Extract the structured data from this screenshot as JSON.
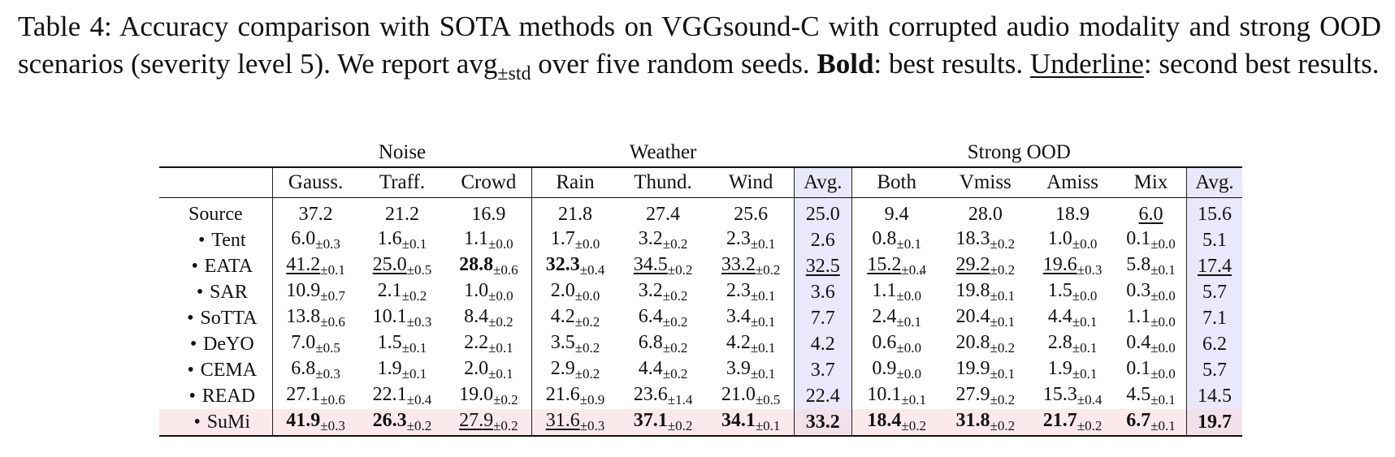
{
  "caption": {
    "label": "Table 4:",
    "text_1": "Accuracy comparison with SOTA methods on VGGsound-C with corrupted audio modality and strong OOD scenarios (severity level 5). We report avg",
    "sub": "±std",
    "text_2": "over five random seeds.",
    "bold_word": "Bold",
    "text_3": ": best results.",
    "underline_word": "Underline",
    "text_4": ": second best results."
  },
  "groups": [
    {
      "label": "",
      "span": 1
    },
    {
      "label": "Noise",
      "span": 3
    },
    {
      "label": "Weather",
      "span": 3
    },
    {
      "label": "",
      "span": 1
    },
    {
      "label": "Strong OOD",
      "span": 4
    },
    {
      "label": "",
      "span": 1
    }
  ],
  "columns": [
    "Gauss.",
    "Traff.",
    "Crowd",
    "Rain",
    "Thund.",
    "Wind",
    "Avg.",
    "Both",
    "Vmiss",
    "Amiss",
    "Mix",
    "Avg."
  ],
  "bullet": "•",
  "rows": [
    {
      "method": "Source",
      "bullet": false,
      "cells": [
        {
          "v": "37.2"
        },
        {
          "v": "21.2"
        },
        {
          "v": "16.9"
        },
        {
          "v": "21.8"
        },
        {
          "v": "27.4"
        },
        {
          "v": "25.6"
        },
        {
          "v": "25.0"
        },
        {
          "v": "9.4"
        },
        {
          "v": "28.0"
        },
        {
          "v": "18.9"
        },
        {
          "v": "6.0",
          "u": true
        },
        {
          "v": "15.6"
        }
      ]
    },
    {
      "method": "Tent",
      "bullet": true,
      "cells": [
        {
          "v": "6.0",
          "s": "±0.3"
        },
        {
          "v": "1.6",
          "s": "±0.1"
        },
        {
          "v": "1.1",
          "s": "±0.0"
        },
        {
          "v": "1.7",
          "s": "±0.0"
        },
        {
          "v": "3.2",
          "s": "±0.2"
        },
        {
          "v": "2.3",
          "s": "±0.1"
        },
        {
          "v": "2.6"
        },
        {
          "v": "0.8",
          "s": "±0.1"
        },
        {
          "v": "18.3",
          "s": "±0.2"
        },
        {
          "v": "1.0",
          "s": "±0.0"
        },
        {
          "v": "0.1",
          "s": "±0.0"
        },
        {
          "v": "5.1"
        }
      ]
    },
    {
      "method": "EATA",
      "bullet": true,
      "cells": [
        {
          "v": "41.2",
          "s": "±0.1",
          "u": true
        },
        {
          "v": "25.0",
          "s": "±0.5",
          "u": true
        },
        {
          "v": "28.8",
          "s": "±0.6",
          "b": true
        },
        {
          "v": "32.3",
          "s": "±0.4",
          "b": true
        },
        {
          "v": "34.5",
          "s": "±0.2",
          "u": true
        },
        {
          "v": "33.2",
          "s": "±0.2",
          "u": true
        },
        {
          "v": "32.5",
          "u": true
        },
        {
          "v": "15.2",
          "s": "±0.4",
          "u": true
        },
        {
          "v": "29.2",
          "s": "±0.2",
          "u": true
        },
        {
          "v": "19.6",
          "s": "±0.3",
          "u": true
        },
        {
          "v": "5.8",
          "s": "±0.1"
        },
        {
          "v": "17.4",
          "u": true
        }
      ]
    },
    {
      "method": "SAR",
      "bullet": true,
      "cells": [
        {
          "v": "10.9",
          "s": "±0.7"
        },
        {
          "v": "2.1",
          "s": "±0.2"
        },
        {
          "v": "1.0",
          "s": "±0.0"
        },
        {
          "v": "2.0",
          "s": "±0.0"
        },
        {
          "v": "3.2",
          "s": "±0.2"
        },
        {
          "v": "2.3",
          "s": "±0.1"
        },
        {
          "v": "3.6"
        },
        {
          "v": "1.1",
          "s": "±0.0"
        },
        {
          "v": "19.8",
          "s": "±0.1"
        },
        {
          "v": "1.5",
          "s": "±0.0"
        },
        {
          "v": "0.3",
          "s": "±0.0"
        },
        {
          "v": "5.7"
        }
      ]
    },
    {
      "method": "SoTTA",
      "bullet": true,
      "cells": [
        {
          "v": "13.8",
          "s": "±0.6"
        },
        {
          "v": "10.1",
          "s": "±0.3"
        },
        {
          "v": "8.4",
          "s": "±0.2"
        },
        {
          "v": "4.2",
          "s": "±0.2"
        },
        {
          "v": "6.4",
          "s": "±0.2"
        },
        {
          "v": "3.4",
          "s": "±0.1"
        },
        {
          "v": "7.7"
        },
        {
          "v": "2.4",
          "s": "±0.1"
        },
        {
          "v": "20.4",
          "s": "±0.1"
        },
        {
          "v": "4.4",
          "s": "±0.1"
        },
        {
          "v": "1.1",
          "s": "±0.0"
        },
        {
          "v": "7.1"
        }
      ]
    },
    {
      "method": "DeYO",
      "bullet": true,
      "cells": [
        {
          "v": "7.0",
          "s": "±0.5"
        },
        {
          "v": "1.5",
          "s": "±0.1"
        },
        {
          "v": "2.2",
          "s": "±0.1"
        },
        {
          "v": "3.5",
          "s": "±0.2"
        },
        {
          "v": "6.8",
          "s": "±0.2"
        },
        {
          "v": "4.2",
          "s": "±0.1"
        },
        {
          "v": "4.2"
        },
        {
          "v": "0.6",
          "s": "±0.0"
        },
        {
          "v": "20.8",
          "s": "±0.2"
        },
        {
          "v": "2.8",
          "s": "±0.1"
        },
        {
          "v": "0.4",
          "s": "±0.0"
        },
        {
          "v": "6.2"
        }
      ]
    },
    {
      "method": "CEMA",
      "bullet": true,
      "cells": [
        {
          "v": "6.8",
          "s": "±0.3"
        },
        {
          "v": "1.9",
          "s": "±0.1"
        },
        {
          "v": "2.0",
          "s": "±0.1"
        },
        {
          "v": "2.9",
          "s": "±0.2"
        },
        {
          "v": "4.4",
          "s": "±0.2"
        },
        {
          "v": "3.9",
          "s": "±0.1"
        },
        {
          "v": "3.7"
        },
        {
          "v": "0.9",
          "s": "±0.0"
        },
        {
          "v": "19.9",
          "s": "±0.1"
        },
        {
          "v": "1.9",
          "s": "±0.1"
        },
        {
          "v": "0.1",
          "s": "±0.0"
        },
        {
          "v": "5.7"
        }
      ]
    },
    {
      "method": "READ",
      "bullet": true,
      "cells": [
        {
          "v": "27.1",
          "s": "±0.6"
        },
        {
          "v": "22.1",
          "s": "±0.4"
        },
        {
          "v": "19.0",
          "s": "±0.2"
        },
        {
          "v": "21.6",
          "s": "±0.9"
        },
        {
          "v": "23.6",
          "s": "±1.4"
        },
        {
          "v": "21.0",
          "s": "±0.5"
        },
        {
          "v": "22.4"
        },
        {
          "v": "10.1",
          "s": "±0.1"
        },
        {
          "v": "27.9",
          "s": "±0.2"
        },
        {
          "v": "15.3",
          "s": "±0.4"
        },
        {
          "v": "4.5",
          "s": "±0.1"
        },
        {
          "v": "14.5"
        }
      ]
    },
    {
      "method": "SuMi",
      "bullet": true,
      "ours": true,
      "cells": [
        {
          "v": "41.9",
          "s": "±0.3",
          "b": true
        },
        {
          "v": "26.3",
          "s": "±0.2",
          "b": true
        },
        {
          "v": "27.9",
          "s": "±0.2",
          "u": true
        },
        {
          "v": "31.6",
          "s": "±0.3",
          "u": true
        },
        {
          "v": "37.1",
          "s": "±0.2",
          "b": true
        },
        {
          "v": "34.1",
          "s": "±0.1",
          "b": true
        },
        {
          "v": "33.2",
          "b": true
        },
        {
          "v": "18.4",
          "s": "±0.2",
          "b": true
        },
        {
          "v": "31.8",
          "s": "±0.2",
          "b": true
        },
        {
          "v": "21.7",
          "s": "±0.2",
          "b": true
        },
        {
          "v": "6.7",
          "s": "±0.1",
          "b": true
        },
        {
          "v": "19.7",
          "b": true
        }
      ]
    }
  ],
  "colors": {
    "avg_column": "#e9e9fb",
    "ours_row": "#fbe9ec"
  }
}
